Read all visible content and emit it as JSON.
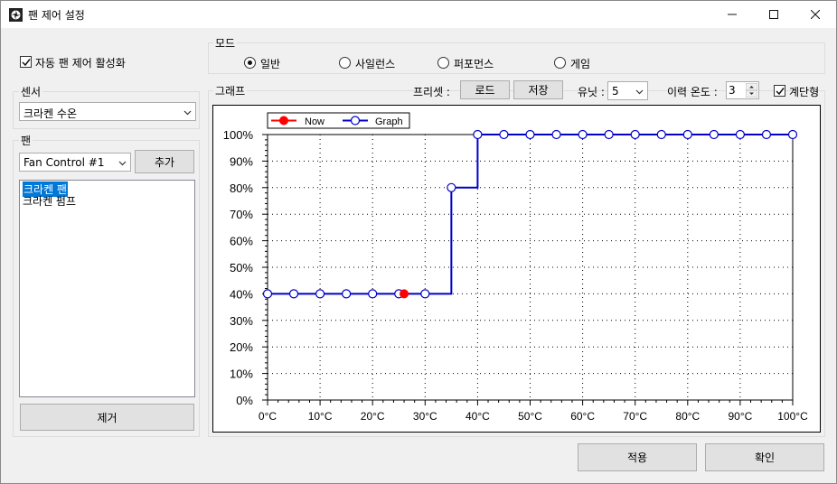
{
  "window": {
    "title": "팬 제어 설정",
    "minimize": "—",
    "maximize": "☐",
    "close": "✕"
  },
  "auto_control": {
    "label": "자동 팬 제어 활성화",
    "checked": true
  },
  "sensor": {
    "group_label": "센서",
    "selected": "크라켄 수온"
  },
  "fan": {
    "group_label": "팬",
    "selected": "Fan Control #1",
    "add_label": "추가",
    "items": [
      "크라켄 팬",
      "크라켄 펌프"
    ],
    "selected_index": 0,
    "remove_label": "제거"
  },
  "mode": {
    "group_label": "모드",
    "options": [
      "일반",
      "사일런스",
      "퍼포먼스",
      "게임"
    ],
    "selected_index": 0
  },
  "graph": {
    "group_label": "그래프",
    "preset_label": "프리셋 :",
    "load_label": "로드",
    "save_label": "저장",
    "unit_label": "유닛 :",
    "unit_value": "5",
    "history_label": "이력 온도 :",
    "history_value": "3",
    "step_label": "계단형",
    "step_checked": true
  },
  "chart_data": {
    "type": "line",
    "x_unit": "°C",
    "y_unit": "%",
    "xlim": [
      0,
      100
    ],
    "ylim": [
      0,
      100
    ],
    "x_ticks": [
      "0°C",
      "10°C",
      "20°C",
      "30°C",
      "40°C",
      "50°C",
      "60°C",
      "70°C",
      "80°C",
      "90°C",
      "100°C"
    ],
    "y_ticks": [
      "0%",
      "10%",
      "20%",
      "30%",
      "40%",
      "50%",
      "60%",
      "70%",
      "80%",
      "90%",
      "100%"
    ],
    "grid": true,
    "step": true,
    "legend_position": "top-left",
    "series": [
      {
        "name": "Graph",
        "color": "#0000c8",
        "x": [
          0,
          5,
          10,
          15,
          20,
          25,
          30,
          35,
          40,
          45,
          50,
          55,
          60,
          65,
          70,
          75,
          80,
          85,
          90,
          95,
          100
        ],
        "y": [
          40,
          40,
          40,
          40,
          40,
          40,
          40,
          80,
          100,
          100,
          100,
          100,
          100,
          100,
          100,
          100,
          100,
          100,
          100,
          100,
          100
        ]
      },
      {
        "name": "Now",
        "color": "#ff0000",
        "x": [
          26
        ],
        "y": [
          40
        ]
      }
    ]
  },
  "footer": {
    "apply_label": "적용",
    "ok_label": "확인"
  }
}
